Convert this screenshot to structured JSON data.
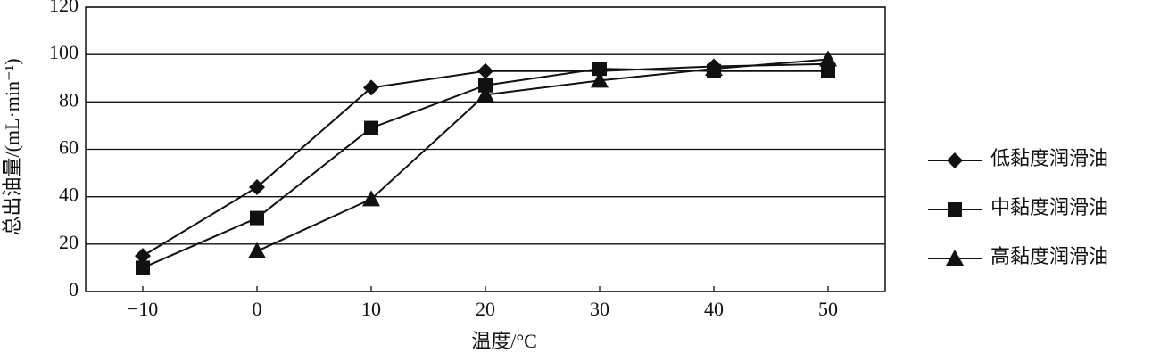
{
  "chart_data": {
    "type": "line",
    "x_label": "温度/°C",
    "y_label": "总出油量/(mL·min⁻¹)",
    "x": [
      -10,
      0,
      10,
      20,
      30,
      40,
      50
    ],
    "series": [
      {
        "name": "低黏度润滑油",
        "color": "#111111",
        "marker": "diamond",
        "values": [
          15,
          44,
          86,
          93,
          93,
          95,
          96
        ]
      },
      {
        "name": "中黏度润滑油",
        "color": "#111111",
        "marker": "square",
        "values": [
          10,
          31,
          69,
          87,
          94,
          93,
          93
        ]
      },
      {
        "name": "高黏度润滑油",
        "color": "#111111",
        "marker": "triangle",
        "values": [
          null,
          17,
          39,
          83,
          89,
          94,
          98
        ]
      }
    ],
    "xlim": [
      -15,
      55
    ],
    "xticks": [
      {
        "value": -10,
        "label": "−10"
      },
      0,
      10,
      20,
      30,
      40,
      50
    ],
    "ylim": [
      0,
      120
    ],
    "yticks": [
      0,
      20,
      40,
      60,
      80,
      100,
      120
    ],
    "grid": true,
    "legend": "right"
  }
}
